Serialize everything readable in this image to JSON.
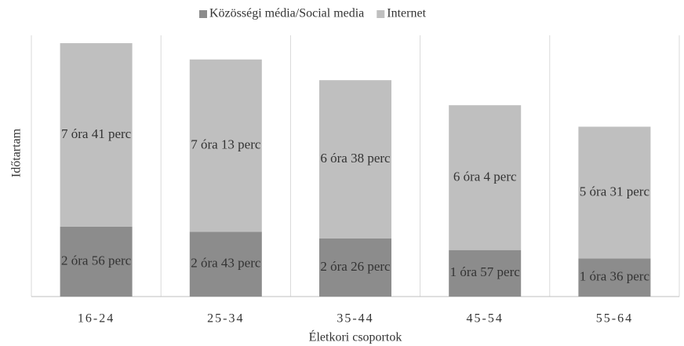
{
  "chart_data": {
    "type": "bar",
    "stacked": true,
    "x_label": "Életkori csoportok",
    "y_label": "Időtartam",
    "categories": [
      "16-24",
      "25-34",
      "35-44",
      "45-54",
      "55-64"
    ],
    "series": [
      {
        "name": "Közösségi média/Social media",
        "color": "#8c8c8c",
        "values": [
          176,
          163,
          146,
          117,
          96
        ],
        "value_labels": [
          "2 óra 56 perc",
          "2 óra 43 perc",
          "2 óra 26 perc",
          "1 óra 57 perc",
          "1 óra 36 perc"
        ]
      },
      {
        "name": "Internet",
        "color": "#bfbfbf",
        "values": [
          461,
          433,
          398,
          364,
          331
        ],
        "value_labels": [
          "7 óra 41 perc",
          "7 óra 13 perc",
          "6 óra 38 perc",
          "6 óra 4 perc",
          "5 óra 31 perc"
        ]
      }
    ],
    "legend": "top"
  }
}
